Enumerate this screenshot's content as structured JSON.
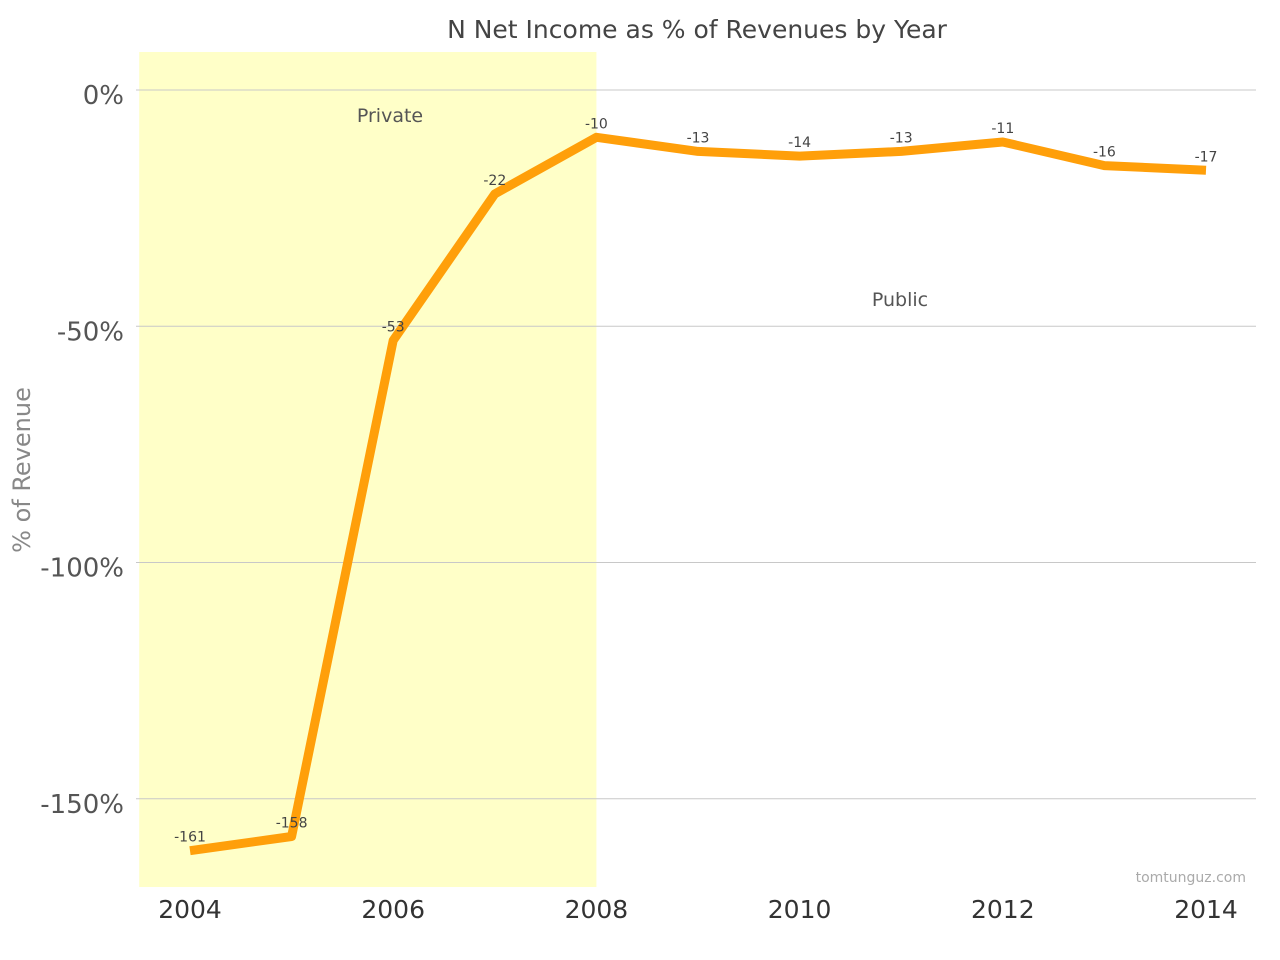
{
  "chart_data": {
    "type": "line",
    "title": "N Net Income as % of Revenues by Year",
    "ylabel": "% of Revenue",
    "xlabel": "",
    "x": [
      2004,
      2005,
      2006,
      2007,
      2008,
      2009,
      2010,
      2011,
      2012,
      2013,
      2014
    ],
    "series": [
      {
        "values": [
          -161,
          -158,
          -53,
          -22,
          -10,
          -13,
          -14,
          -13,
          -11,
          -16,
          -17
        ]
      }
    ],
    "data_labels": [
      "-161",
      "-158",
      "-53",
      "-22",
      "-10",
      "-13",
      "-14",
      "-13",
      "-11",
      "-16",
      "-17"
    ],
    "ylim": [
      -168,
      8
    ],
    "xlim": [
      2003.5,
      2014.5
    ],
    "yticks": [
      0,
      -50,
      -100,
      -150
    ],
    "ytick_labels": [
      "0%",
      "-50%",
      "-100%",
      "-150%"
    ],
    "xticks": [
      2004,
      2006,
      2008,
      2010,
      2012,
      2014
    ],
    "xtick_labels": [
      "2004",
      "2006",
      "2008",
      "2010",
      "2012",
      "2014"
    ],
    "grid": true,
    "line_color": "#ff9f0a",
    "shaded_region": {
      "label": "Private",
      "x_start": 2003.5,
      "x_end": 2008,
      "color": "#ffffc8"
    },
    "unshaded_region_label": "Public",
    "credit": "tomtunguz.com"
  }
}
